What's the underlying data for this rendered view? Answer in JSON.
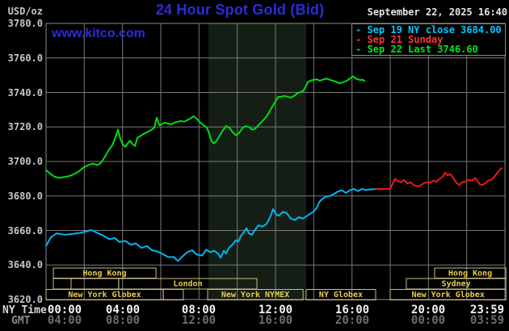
{
  "header": {
    "units_label": "USD/oz",
    "title": "24 Hour Spot Gold (Bid)",
    "datetime": "September 22, 2025 16:40",
    "watermark": "www.kitco.com"
  },
  "legend": {
    "entries": [
      {
        "label": "- Sep 19 NY close 3684.00",
        "color": "#00c8ff"
      },
      {
        "label": "- Sep 21 Sunday",
        "color": "#ff3232"
      },
      {
        "label": "- Sep 22 Last 3746.60",
        "color": "#00e41e"
      }
    ]
  },
  "axes": {
    "x_ny_label": "NY Time",
    "x_gmt_label": "GMT",
    "y_ticks": [
      "3780.0",
      "3760.0",
      "3740.0",
      "3720.0",
      "3700.0",
      "3680.0",
      "3660.0",
      "3640.0",
      "3620.0"
    ],
    "x_ny_ticks": [
      "00:00",
      "04:00",
      "08:00",
      "12:00",
      "16:00",
      "20:00",
      "23:59"
    ],
    "x_gmt_ticks": [
      "04:00",
      "08:00",
      "12:00",
      "16:00",
      "20:00",
      "00:00",
      "03:59"
    ]
  },
  "sessions": {
    "rows": [
      {
        "boxes": [
          {
            "start": 0.38,
            "end": 5.75,
            "label": "Hong Kong"
          },
          {
            "start": 20.32,
            "end": 24.05,
            "label": "Hong Kong"
          }
        ]
      },
      {
        "boxes": [
          {
            "start": 0.38,
            "end": 1.31,
            "label": ""
          },
          {
            "start": 1.31,
            "end": 3.8,
            "label": ""
          },
          {
            "start": 3.8,
            "end": 11.03,
            "label": "London"
          },
          {
            "start": 18.84,
            "end": 24.05,
            "label": "Sydney"
          }
        ]
      },
      {
        "boxes": [
          {
            "start": 0,
            "end": 6.13,
            "label": "New York Globex"
          },
          {
            "start": 6.13,
            "end": 7.18,
            "label": ""
          },
          {
            "start": 8.45,
            "end": 13.44,
            "label": "New York NYMEX"
          },
          {
            "start": 13.6,
            "end": 17.24,
            "label": "NY Globex"
          },
          {
            "start": 18.0,
            "end": 24.05,
            "label": "New York Globex"
          }
        ]
      }
    ]
  },
  "colors": {
    "background": "#000000",
    "grid": "#7a7a7a",
    "border": "#8d8d8d",
    "shade": "#141e14",
    "session_border": "#c9bd85",
    "session_label": "#eace4e",
    "title_blue": "#2b2bdd",
    "date_text": "#e6e6e6",
    "axis_text": "#c6c6c6",
    "tick_text": "#f2f2f2",
    "gmt_text": "#6e6e6e"
  },
  "chart_data": {
    "type": "line",
    "title": "24 Hour Spot Gold (Bid)",
    "xlabel": "NY Time (hours, 00:00-23:59)",
    "ylabel": "USD/oz",
    "ylim": [
      3620,
      3780
    ],
    "xlim_hours": [
      0,
      24
    ],
    "grid": true,
    "y_tick_step": 20,
    "x_grid_step_hours": 2,
    "nymex_floor_shade_hours": [
      8.49,
      13.61
    ],
    "series": [
      {
        "id": "sep19",
        "name": "Sep 19 NY close 3684.00",
        "color": "#00b6f2",
        "points": [
          [
            0,
            3651
          ],
          [
            0.25,
            3656
          ],
          [
            0.55,
            3658.3
          ],
          [
            0.97,
            3657.5
          ],
          [
            1.39,
            3658
          ],
          [
            1.82,
            3658.7
          ],
          [
            2.37,
            3660.3
          ],
          [
            2.66,
            3658.7
          ],
          [
            3,
            3657
          ],
          [
            3.3,
            3655
          ],
          [
            3.59,
            3655.6
          ],
          [
            3.84,
            3653.3
          ],
          [
            4.14,
            3654
          ],
          [
            4.44,
            3651.7
          ],
          [
            4.69,
            3652.5
          ],
          [
            4.99,
            3650
          ],
          [
            5.28,
            3651
          ],
          [
            5.53,
            3648.6
          ],
          [
            5.83,
            3647.8
          ],
          [
            6.13,
            3646.2
          ],
          [
            6.38,
            3644.6
          ],
          [
            6.68,
            3644.6
          ],
          [
            6.89,
            3642.3
          ],
          [
            7.1,
            3644.6
          ],
          [
            7.39,
            3647.4
          ],
          [
            7.65,
            3648.6
          ],
          [
            7.86,
            3646.2
          ],
          [
            8.16,
            3645.4
          ],
          [
            8.37,
            3648.9
          ],
          [
            8.58,
            3647.4
          ],
          [
            8.79,
            3648.2
          ],
          [
            9,
            3646.6
          ],
          [
            9.13,
            3644.2
          ],
          [
            9.3,
            3648.2
          ],
          [
            9.42,
            3646.6
          ],
          [
            9.55,
            3649.7
          ],
          [
            9.76,
            3652
          ],
          [
            9.93,
            3654.4
          ],
          [
            10.06,
            3653.6
          ],
          [
            10.18,
            3656.7
          ],
          [
            10.35,
            3659.1
          ],
          [
            10.48,
            3661.4
          ],
          [
            10.61,
            3658.3
          ],
          [
            10.77,
            3657.5
          ],
          [
            10.9,
            3659.9
          ],
          [
            11.11,
            3663
          ],
          [
            11.32,
            3662.2
          ],
          [
            11.53,
            3663.8
          ],
          [
            11.75,
            3668.5
          ],
          [
            11.87,
            3672.4
          ],
          [
            12.04,
            3669.3
          ],
          [
            12.17,
            3668.5
          ],
          [
            12.38,
            3670.8
          ],
          [
            12.59,
            3670
          ],
          [
            12.8,
            3666.9
          ],
          [
            13.01,
            3666.1
          ],
          [
            13.22,
            3667.7
          ],
          [
            13.44,
            3666.9
          ],
          [
            13.65,
            3668.5
          ],
          [
            13.86,
            3670
          ],
          [
            13.99,
            3670.8
          ],
          [
            14.16,
            3673.2
          ],
          [
            14.28,
            3676.3
          ],
          [
            14.41,
            3677.9
          ],
          [
            14.62,
            3679.5
          ],
          [
            14.83,
            3680
          ],
          [
            15.04,
            3681
          ],
          [
            15.25,
            3682.5
          ],
          [
            15.47,
            3683.3
          ],
          [
            15.68,
            3681.8
          ],
          [
            15.89,
            3683.3
          ],
          [
            16.1,
            3684.1
          ],
          [
            16.31,
            3682.8
          ],
          [
            16.52,
            3684.1
          ],
          [
            16.73,
            3683.5
          ],
          [
            16.94,
            3683.8
          ],
          [
            17.24,
            3684
          ]
        ]
      },
      {
        "id": "sep21",
        "name": "Sep 21 Sunday",
        "color": "#ee1616",
        "points": [
          [
            17.24,
            3684.1
          ],
          [
            18,
            3684.1
          ],
          [
            18.13,
            3687.2
          ],
          [
            18.25,
            3689.9
          ],
          [
            18.38,
            3688.8
          ],
          [
            18.55,
            3688
          ],
          [
            18.72,
            3689.3
          ],
          [
            18.89,
            3687.2
          ],
          [
            19.06,
            3688
          ],
          [
            19.22,
            3686.4
          ],
          [
            19.39,
            3685.6
          ],
          [
            19.56,
            3685.9
          ],
          [
            19.73,
            3687.2
          ],
          [
            19.9,
            3688
          ],
          [
            20.07,
            3687.7
          ],
          [
            20.24,
            3688.8
          ],
          [
            20.41,
            3688.3
          ],
          [
            20.58,
            3689.9
          ],
          [
            20.75,
            3691.2
          ],
          [
            20.87,
            3693.5
          ],
          [
            21,
            3691.9
          ],
          [
            21.13,
            3692.7
          ],
          [
            21.25,
            3691.2
          ],
          [
            21.38,
            3688.8
          ],
          [
            21.51,
            3687.2
          ],
          [
            21.63,
            3686.4
          ],
          [
            21.76,
            3688
          ],
          [
            21.93,
            3688.3
          ],
          [
            22.1,
            3689.4
          ],
          [
            22.27,
            3688.8
          ],
          [
            22.44,
            3690.4
          ],
          [
            22.56,
            3688.8
          ],
          [
            22.69,
            3686.7
          ],
          [
            22.82,
            3686.4
          ],
          [
            22.94,
            3687.2
          ],
          [
            23.11,
            3688.8
          ],
          [
            23.28,
            3689.4
          ],
          [
            23.45,
            3691.2
          ],
          [
            23.62,
            3693.5
          ],
          [
            23.75,
            3695.5
          ],
          [
            23.83,
            3696.1
          ]
        ]
      },
      {
        "id": "sep22",
        "name": "Sep 22 Last 3746.60",
        "color": "#00dc14",
        "points": [
          [
            0,
            3695
          ],
          [
            0.21,
            3693
          ],
          [
            0.42,
            3691.3
          ],
          [
            0.68,
            3690.5
          ],
          [
            0.97,
            3691
          ],
          [
            1.27,
            3691.7
          ],
          [
            1.52,
            3693
          ],
          [
            1.73,
            3694.4
          ],
          [
            1.94,
            3696.3
          ],
          [
            2.15,
            3697.6
          ],
          [
            2.32,
            3698.3
          ],
          [
            2.49,
            3698.8
          ],
          [
            2.66,
            3697.9
          ],
          [
            2.83,
            3698.8
          ],
          [
            2.96,
            3700.7
          ],
          [
            3.13,
            3703.8
          ],
          [
            3.3,
            3707
          ],
          [
            3.46,
            3709.3
          ],
          [
            3.63,
            3714
          ],
          [
            3.76,
            3718.5
          ],
          [
            3.89,
            3713
          ],
          [
            4.01,
            3710
          ],
          [
            4.14,
            3708.5
          ],
          [
            4.27,
            3710.5
          ],
          [
            4.39,
            3712
          ],
          [
            4.52,
            3710
          ],
          [
            4.65,
            3709
          ],
          [
            4.77,
            3713.5
          ],
          [
            4.9,
            3714.5
          ],
          [
            5.03,
            3715.5
          ],
          [
            5.2,
            3716.5
          ],
          [
            5.37,
            3717.5
          ],
          [
            5.53,
            3718.5
          ],
          [
            5.66,
            3719.5
          ],
          [
            5.79,
            3725.4
          ],
          [
            5.92,
            3721
          ],
          [
            6.04,
            3721.5
          ],
          [
            6.21,
            3722.5
          ],
          [
            6.38,
            3722
          ],
          [
            6.55,
            3721.5
          ],
          [
            6.72,
            3722.5
          ],
          [
            6.89,
            3723
          ],
          [
            7.06,
            3723.5
          ],
          [
            7.22,
            3723
          ],
          [
            7.39,
            3724
          ],
          [
            7.56,
            3725
          ],
          [
            7.73,
            3726.2
          ],
          [
            7.9,
            3724.5
          ],
          [
            8.07,
            3722.5
          ],
          [
            8.24,
            3721
          ],
          [
            8.41,
            3719.5
          ],
          [
            8.54,
            3716
          ],
          [
            8.66,
            3711.5
          ],
          [
            8.79,
            3710.5
          ],
          [
            8.92,
            3712
          ],
          [
            9.08,
            3715
          ],
          [
            9.25,
            3718
          ],
          [
            9.42,
            3720.5
          ],
          [
            9.59,
            3719.5
          ],
          [
            9.76,
            3717
          ],
          [
            9.93,
            3715.2
          ],
          [
            10.1,
            3716.5
          ],
          [
            10.27,
            3719.4
          ],
          [
            10.44,
            3720.5
          ],
          [
            10.61,
            3720
          ],
          [
            10.77,
            3718.5
          ],
          [
            10.94,
            3719
          ],
          [
            11.11,
            3721
          ],
          [
            11.28,
            3723
          ],
          [
            11.45,
            3725
          ],
          [
            11.62,
            3727.5
          ],
          [
            11.79,
            3731
          ],
          [
            11.96,
            3734
          ],
          [
            12.13,
            3737.3
          ],
          [
            12.3,
            3737.5
          ],
          [
            12.47,
            3738
          ],
          [
            12.63,
            3737.5
          ],
          [
            12.8,
            3737
          ],
          [
            12.97,
            3738
          ],
          [
            13.14,
            3739.5
          ],
          [
            13.31,
            3740.2
          ],
          [
            13.44,
            3740.8
          ],
          [
            13.56,
            3743
          ],
          [
            13.69,
            3746
          ],
          [
            13.82,
            3746.8
          ],
          [
            13.99,
            3747.3
          ],
          [
            14.16,
            3747.6
          ],
          [
            14.32,
            3746.8
          ],
          [
            14.49,
            3747.5
          ],
          [
            14.66,
            3748
          ],
          [
            14.83,
            3747.4
          ],
          [
            15,
            3746.8
          ],
          [
            15.17,
            3746.2
          ],
          [
            15.34,
            3745.3
          ],
          [
            15.51,
            3745.8
          ],
          [
            15.68,
            3746.5
          ],
          [
            15.8,
            3747.3
          ],
          [
            15.93,
            3748.4
          ],
          [
            16.06,
            3749.3
          ],
          [
            16.18,
            3748.2
          ],
          [
            16.31,
            3747.6
          ],
          [
            16.44,
            3747.2
          ],
          [
            16.56,
            3747.4
          ],
          [
            16.65,
            3746.6
          ]
        ]
      }
    ]
  }
}
